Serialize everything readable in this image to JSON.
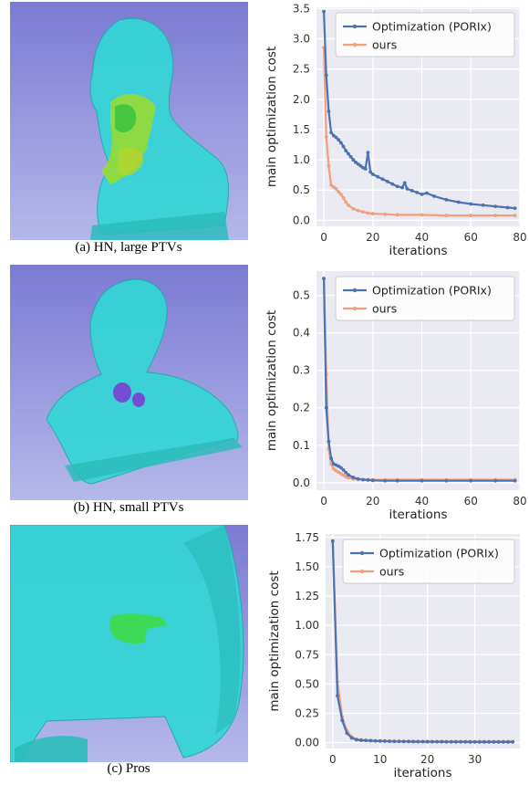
{
  "captions": [
    "(a) HN, large PTVs",
    "(b) HN, small PTVs",
    "(c) Pros"
  ],
  "colors": {
    "blue": "#4c72b0",
    "orange": "#f0a07c",
    "plotbg": "#eaeaf2",
    "cyan": "#33d6d6",
    "sky": "#8e8cd6"
  },
  "chart_data": [
    {
      "type": "line",
      "xlabel": "iterations",
      "ylabel": "main optimization cost",
      "xlim": [
        -3,
        80
      ],
      "ylim": [
        -0.1,
        3.52
      ],
      "xticks": [
        0,
        20,
        40,
        60,
        80
      ],
      "yticks": [
        0.0,
        0.5,
        1.0,
        1.5,
        2.0,
        2.5,
        3.0,
        3.5
      ],
      "ytick_labels": [
        "0.0",
        "0.5",
        "1.0",
        "1.5",
        "2.0",
        "2.5",
        "3.0",
        "3.5"
      ],
      "legend": "top-right",
      "series": [
        {
          "name": "Optimization (PORIx)",
          "color": "#4c72b0",
          "x": [
            0,
            1,
            2,
            3,
            4,
            5,
            6,
            7,
            8,
            9,
            10,
            11,
            12,
            13,
            14,
            15,
            16,
            17,
            18,
            19,
            20,
            22,
            24,
            26,
            28,
            30,
            32,
            33,
            34,
            36,
            38,
            40,
            42,
            45,
            50,
            55,
            60,
            65,
            70,
            75,
            78
          ],
          "y": [
            3.45,
            2.4,
            1.8,
            1.45,
            1.4,
            1.37,
            1.33,
            1.28,
            1.22,
            1.15,
            1.1,
            1.05,
            1.0,
            0.96,
            0.93,
            0.9,
            0.87,
            0.85,
            1.12,
            0.8,
            0.76,
            0.72,
            0.68,
            0.64,
            0.6,
            0.56,
            0.54,
            0.62,
            0.52,
            0.49,
            0.46,
            0.43,
            0.45,
            0.4,
            0.34,
            0.3,
            0.27,
            0.25,
            0.23,
            0.21,
            0.2
          ]
        },
        {
          "name": "ours",
          "color": "#f0a07c",
          "x": [
            0,
            1,
            2,
            3,
            4,
            5,
            6,
            7,
            8,
            9,
            10,
            12,
            14,
            16,
            18,
            20,
            25,
            30,
            40,
            50,
            60,
            70,
            78
          ],
          "y": [
            2.85,
            1.38,
            0.9,
            0.58,
            0.55,
            0.52,
            0.47,
            0.43,
            0.37,
            0.3,
            0.25,
            0.19,
            0.16,
            0.14,
            0.12,
            0.11,
            0.1,
            0.09,
            0.09,
            0.08,
            0.08,
            0.08,
            0.08
          ]
        }
      ]
    },
    {
      "type": "line",
      "xlabel": "iterations",
      "ylabel": "main optimization cost",
      "xlim": [
        -3,
        80
      ],
      "ylim": [
        -0.02,
        0.565
      ],
      "xticks": [
        0,
        20,
        40,
        60,
        80
      ],
      "yticks": [
        0.0,
        0.1,
        0.2,
        0.3,
        0.4,
        0.5
      ],
      "ytick_labels": [
        "0.0",
        "0.1",
        "0.2",
        "0.3",
        "0.4",
        "0.5"
      ],
      "legend": "top-right",
      "series": [
        {
          "name": "Optimization (PORIx)",
          "color": "#4c72b0",
          "x": [
            0,
            1,
            2,
            3,
            4,
            5,
            6,
            7,
            8,
            9,
            10,
            12,
            14,
            16,
            18,
            20,
            25,
            30,
            40,
            50,
            60,
            70,
            78
          ],
          "y": [
            0.545,
            0.2,
            0.11,
            0.065,
            0.05,
            0.047,
            0.044,
            0.04,
            0.034,
            0.027,
            0.021,
            0.014,
            0.01,
            0.008,
            0.007,
            0.006,
            0.005,
            0.005,
            0.005,
            0.005,
            0.005,
            0.005,
            0.005
          ]
        },
        {
          "name": "ours",
          "color": "#f0a07c",
          "x": [
            0,
            1,
            2,
            3,
            4,
            5,
            6,
            7,
            8,
            9,
            10,
            12,
            14,
            16,
            18,
            20,
            25,
            30,
            40,
            50,
            60,
            70,
            78
          ],
          "y": [
            0.545,
            0.29,
            0.09,
            0.05,
            0.037,
            0.032,
            0.028,
            0.024,
            0.02,
            0.016,
            0.013,
            0.01,
            0.009,
            0.008,
            0.008,
            0.008,
            0.008,
            0.008,
            0.008,
            0.008,
            0.008,
            0.008,
            0.008
          ]
        }
      ]
    },
    {
      "type": "line",
      "xlabel": "iterations",
      "ylabel": "main optimization cost",
      "xlim": [
        -1.5,
        39.5
      ],
      "ylim": [
        -0.05,
        1.78
      ],
      "xticks": [
        0,
        10,
        20,
        30
      ],
      "yticks": [
        0.0,
        0.25,
        0.5,
        0.75,
        1.0,
        1.25,
        1.5,
        1.75
      ],
      "ytick_labels": [
        "0.00",
        "0.25",
        "0.50",
        "0.75",
        "1.00",
        "1.25",
        "1.50",
        "1.75"
      ],
      "legend": "top-right",
      "series": [
        {
          "name": "Optimization (PORIx)",
          "color": "#4c72b0",
          "x": [
            0,
            1,
            2,
            3,
            4,
            5,
            6,
            7,
            8,
            9,
            10,
            11,
            12,
            13,
            14,
            15,
            16,
            17,
            18,
            19,
            20,
            21,
            22,
            23,
            24,
            25,
            26,
            27,
            28,
            29,
            30,
            31,
            32,
            33,
            34,
            35,
            36,
            37,
            38
          ],
          "y": [
            1.72,
            0.4,
            0.19,
            0.08,
            0.04,
            0.025,
            0.02,
            0.018,
            0.016,
            0.014,
            0.013,
            0.012,
            0.011,
            0.01,
            0.01,
            0.009,
            0.009,
            0.008,
            0.008,
            0.008,
            0.007,
            0.007,
            0.007,
            0.007,
            0.006,
            0.006,
            0.006,
            0.006,
            0.006,
            0.005,
            0.005,
            0.005,
            0.005,
            0.005,
            0.005,
            0.005,
            0.005,
            0.005,
            0.005
          ]
        },
        {
          "name": "ours",
          "color": "#f0a07c",
          "x": [
            0,
            1,
            2,
            3,
            4,
            5,
            6,
            7,
            8,
            9,
            10,
            11,
            12,
            13,
            14,
            15,
            16,
            17,
            18,
            19,
            20,
            21,
            22,
            23,
            24,
            25,
            26,
            27,
            28,
            29,
            30,
            31,
            32,
            33,
            34,
            35,
            36,
            37,
            38
          ],
          "y": [
            1.72,
            0.52,
            0.22,
            0.1,
            0.05,
            0.03,
            0.024,
            0.02,
            0.018,
            0.016,
            0.015,
            0.014,
            0.013,
            0.012,
            0.012,
            0.011,
            0.011,
            0.011,
            0.01,
            0.01,
            0.01,
            0.01,
            0.01,
            0.01,
            0.01,
            0.01,
            0.01,
            0.01,
            0.01,
            0.01,
            0.01,
            0.01,
            0.01,
            0.01,
            0.01,
            0.01,
            0.01,
            0.01,
            0.01
          ]
        }
      ]
    }
  ]
}
